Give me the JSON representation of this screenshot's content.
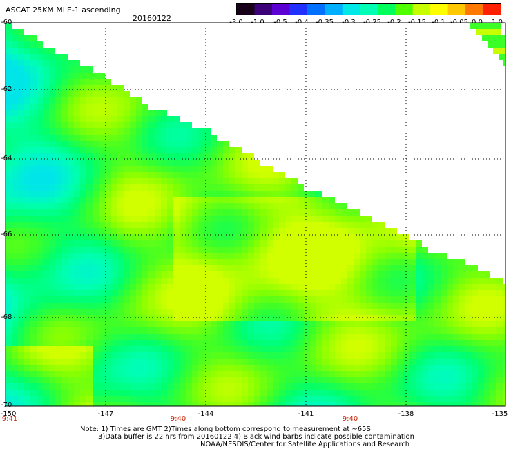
{
  "header": {
    "title": "ASCAT 25KM MLE-1 ascending",
    "date": "20160122"
  },
  "colorbar": {
    "labels": [
      "-3.0",
      "-1.0",
      "-0.5",
      "-0.4",
      "-0.35",
      "-0.3",
      "-0.25",
      "-0.2",
      "-0.15",
      "-0.1",
      "-0.05",
      "0.0",
      "1.0"
    ],
    "colors": [
      "#180018",
      "#3c0078",
      "#5a00d2",
      "#2030ff",
      "#0070ff",
      "#00b0ff",
      "#00e8e8",
      "#00ffb4",
      "#00ff5a",
      "#50ff00",
      "#c8ff00",
      "#ffff00",
      "#ffc800",
      "#ff7800",
      "#ff2000"
    ]
  },
  "axes": {
    "lat_labels": [
      "-60",
      "-62",
      "-64",
      "-66",
      "-68",
      "-70"
    ],
    "lon_labels": [
      "-150",
      "-147",
      "-144",
      "-141",
      "-138",
      "-135"
    ],
    "time_labels": [
      "9:41",
      "9:40",
      "9:40"
    ]
  },
  "notes": {
    "line1": "Note: 1) Times are GMT 2)Times along bottom correspond to measurement at ~65S",
    "line2": "3)Data buffer is 22 hrs from 20160122 4) Black wind barbs indicate possible contamination",
    "line3": "NOAA/NESDIS/Center for Satellite Applications and Research"
  }
}
